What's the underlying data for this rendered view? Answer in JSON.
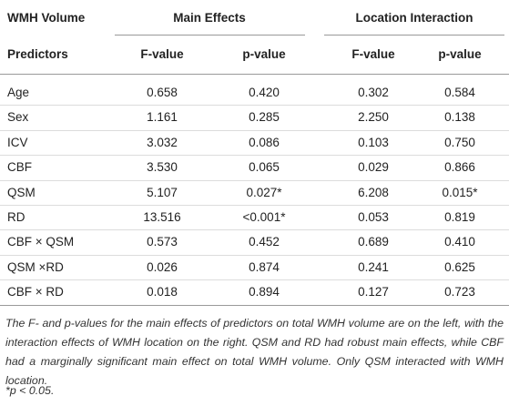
{
  "table": {
    "group_header": [
      "WMH Volume",
      "Main Effects",
      "Location Interaction"
    ],
    "columns": [
      "Predictors",
      "F-value",
      "p-value",
      "F-value",
      "p-value"
    ],
    "rows": [
      [
        "Age",
        "0.658",
        "0.420",
        "0.302",
        "0.584"
      ],
      [
        "Sex",
        "1.161",
        "0.285",
        "2.250",
        "0.138"
      ],
      [
        "ICV",
        "3.032",
        "0.086",
        "0.103",
        "0.750"
      ],
      [
        "CBF",
        "3.530",
        "0.065",
        "0.029",
        "0.866"
      ],
      [
        "QSM",
        "5.107",
        "0.027*",
        "6.208",
        "0.015*"
      ],
      [
        "RD",
        "13.516",
        "<0.001*",
        "0.053",
        "0.819"
      ],
      [
        "CBF × QSM",
        "0.573",
        "0.452",
        "0.689",
        "0.410"
      ],
      [
        "QSM ×RD",
        "0.026",
        "0.874",
        "0.241",
        "0.625"
      ],
      [
        "CBF × RD",
        "0.018",
        "0.894",
        "0.127",
        "0.723"
      ]
    ]
  },
  "footnotes": [
    "The F- and p-values for the main effects of predictors on total WMH volume are on the left, with the interaction effects of WMH location on the right. QSM and RD had robust main effects, while CBF had a marginally significant main effect on total WMH volume. Only QSM interacted with WMH location.",
    "*p < 0.05."
  ]
}
